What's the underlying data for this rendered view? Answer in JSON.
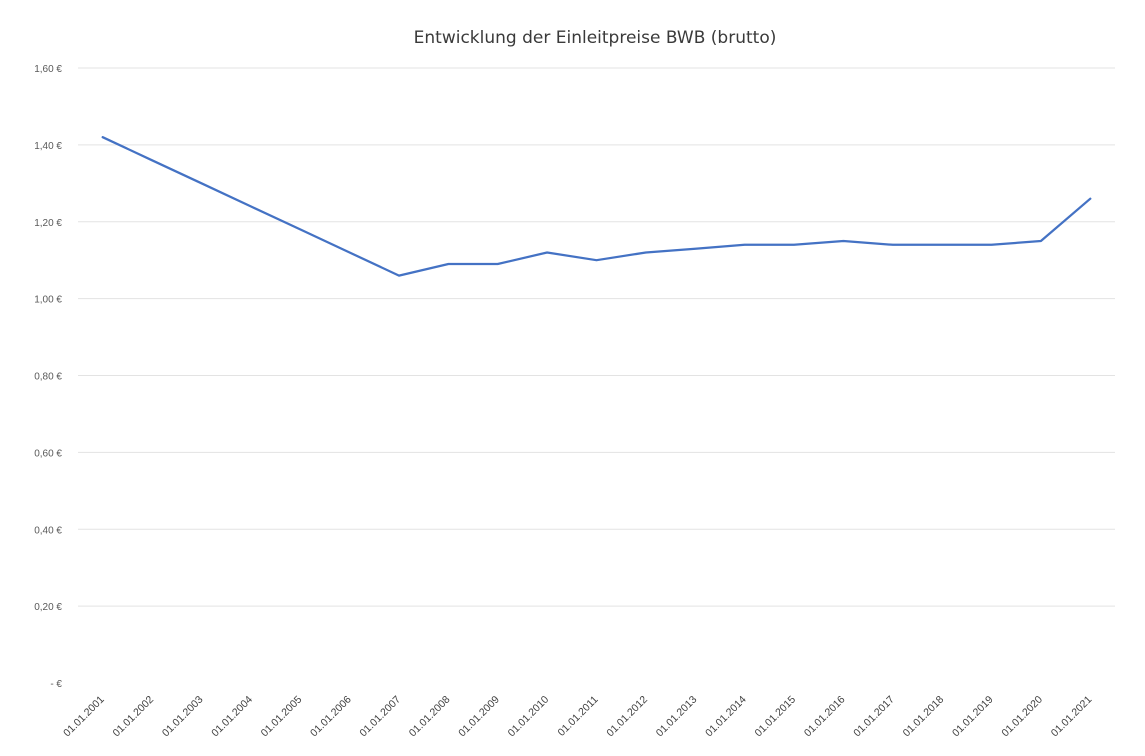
{
  "chart_data": {
    "type": "line",
    "title": "Entwicklung der Einleitpreise BWB (brutto)",
    "xlabel": "",
    "ylabel": "",
    "ylim": [
      0,
      1.6
    ],
    "y_ticks": [
      "1,60 €",
      "1,40 €",
      "1,20 €",
      "1,00 €",
      "0,80 €",
      "0,60 €",
      "0,40 €",
      "0,20 €",
      "- €"
    ],
    "y_tick_values": [
      1.6,
      1.4,
      1.2,
      1.0,
      0.8,
      0.6,
      0.4,
      0.2,
      0
    ],
    "categories": [
      "01.01.2001",
      "01.01.2002",
      "01.01.2003",
      "01.01.2004",
      "01.01.2005",
      "01.01.2006",
      "01.01.2007",
      "01.01.2008",
      "01.01.2009",
      "01.01.2010",
      "01.01.2011",
      "01.01.2012",
      "01.01.2013",
      "01.01.2014",
      "01.01.2015",
      "01.01.2016",
      "01.01.2017",
      "01.01.2018",
      "01.01.2019",
      "01.01.2020",
      "01.01.2021"
    ],
    "series": [
      {
        "values": [
          1.42,
          1.36,
          1.3,
          1.24,
          1.18,
          1.12,
          1.06,
          1.09,
          1.09,
          1.12,
          1.1,
          1.12,
          1.13,
          1.14,
          1.14,
          1.15,
          1.14,
          1.14,
          1.14,
          1.15,
          1.26
        ],
        "color": "#4472c4"
      }
    ],
    "grid": true,
    "legend": "none"
  }
}
